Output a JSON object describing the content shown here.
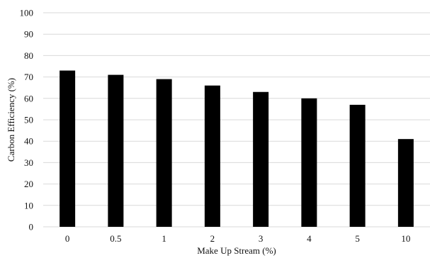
{
  "chart_data": {
    "type": "bar",
    "title": "",
    "xlabel": "Make Up Stream (%)",
    "ylabel": "Carbon Efficiency (%)",
    "categories": [
      "0",
      "0.5",
      "1",
      "2",
      "3",
      "4",
      "5",
      "10"
    ],
    "values": [
      73,
      71,
      69,
      66,
      63,
      60,
      57,
      41
    ],
    "ylim": [
      0,
      100
    ],
    "yticks": [
      0,
      10,
      20,
      30,
      40,
      50,
      60,
      70,
      80,
      90,
      100
    ],
    "grid": true,
    "legend": "none",
    "bar_color": "#000000",
    "grid_color": "#d9d9d9"
  }
}
